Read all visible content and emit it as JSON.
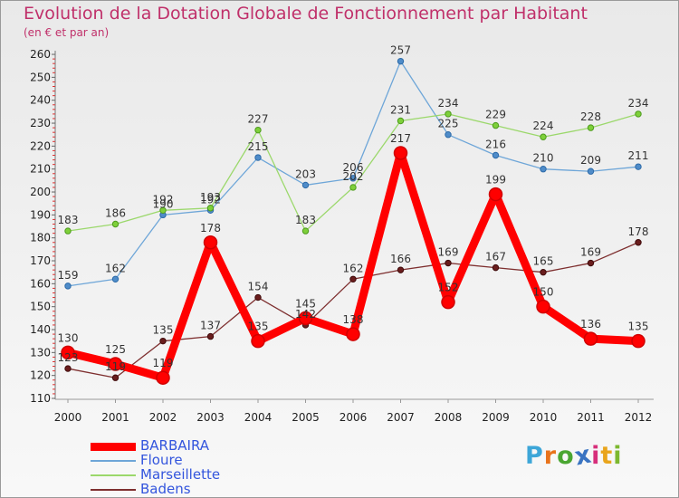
{
  "header": {
    "title": "Evolution de la Dotation Globale de Fonctionnement par Habitant",
    "subtitle": "(en € et par an)"
  },
  "brand": {
    "logo_letters": [
      "P",
      "r",
      "o",
      "x",
      "i",
      "t",
      "i"
    ],
    "logo_colors": [
      "#3da6d8",
      "#e8731b",
      "#4aa631",
      "#3a74c2",
      "#d72f7b",
      "#e9a51c",
      "#7cb82f"
    ]
  },
  "chart_data": {
    "type": "line",
    "x": [
      2000,
      2001,
      2002,
      2003,
      2004,
      2005,
      2006,
      2007,
      2008,
      2009,
      2010,
      2011,
      2012
    ],
    "x_tick_labels": [
      "2000",
      "2001",
      "2002",
      "2003",
      "2004",
      "2005",
      "2006",
      "2007",
      "2008",
      "2009",
      "2010",
      "2011",
      "2012"
    ],
    "ylim": [
      110,
      260
    ],
    "y_ticks": [
      110,
      120,
      130,
      140,
      150,
      160,
      170,
      180,
      190,
      200,
      210,
      220,
      230,
      240,
      250,
      260
    ],
    "grid": false,
    "legend_position": "bottom-left",
    "series": [
      {
        "name": "BARBAIRA",
        "values": [
          130,
          125,
          119,
          178,
          135,
          145,
          138,
          217,
          152,
          199,
          150,
          136,
          135
        ],
        "data_labels": [
          "130",
          "125",
          "119",
          "178",
          "135",
          "145",
          "138",
          "217",
          "152",
          "199",
          "150",
          "136",
          "135"
        ],
        "color": "#ff0000",
        "line_color": "#ff0000",
        "marker_fill": "#ff0000",
        "marker_stroke": "#d00000",
        "line_width": 9,
        "marker_radius": 7
      },
      {
        "name": "Floure",
        "values": [
          159,
          162,
          190,
          192,
          215,
          203,
          206,
          257,
          225,
          216,
          210,
          209,
          211
        ],
        "data_labels": [
          "159",
          "162",
          "190",
          "192",
          "215",
          "203",
          "206",
          "257",
          "225",
          "216",
          "210",
          "209",
          "211"
        ],
        "color": "#5e9cd3",
        "line_color": "#6ea6d8",
        "marker_fill": "#4f8cc9",
        "marker_stroke": "#2c6aa8",
        "line_width": 1.3,
        "marker_radius": 3.2
      },
      {
        "name": "Marseillette",
        "values": [
          183,
          186,
          192,
          193,
          227,
          183,
          202,
          231,
          234,
          229,
          224,
          228,
          234
        ],
        "data_labels": [
          "183",
          "186",
          "192",
          "193",
          "227",
          "183",
          "202",
          "231",
          "234",
          "229",
          "224",
          "228",
          "234"
        ],
        "color": "#92d050",
        "line_color": "#9bd86b",
        "marker_fill": "#7ed03a",
        "marker_stroke": "#4c9a1c",
        "line_width": 1.3,
        "marker_radius": 3.2
      },
      {
        "name": "Badens",
        "values": [
          123,
          119,
          135,
          137,
          154,
          142,
          162,
          166,
          169,
          167,
          165,
          169,
          178
        ],
        "data_labels": [
          "123",
          "119",
          "135",
          "137",
          "154",
          "142",
          "162",
          "166",
          "169",
          "167",
          "165",
          "169",
          "178"
        ],
        "color": "#7b2c2c",
        "line_color": "#7e2f2f",
        "marker_fill": "#6a1d1d",
        "marker_stroke": "#3e0a0a",
        "line_width": 1.3,
        "marker_radius": 3.2
      }
    ]
  }
}
